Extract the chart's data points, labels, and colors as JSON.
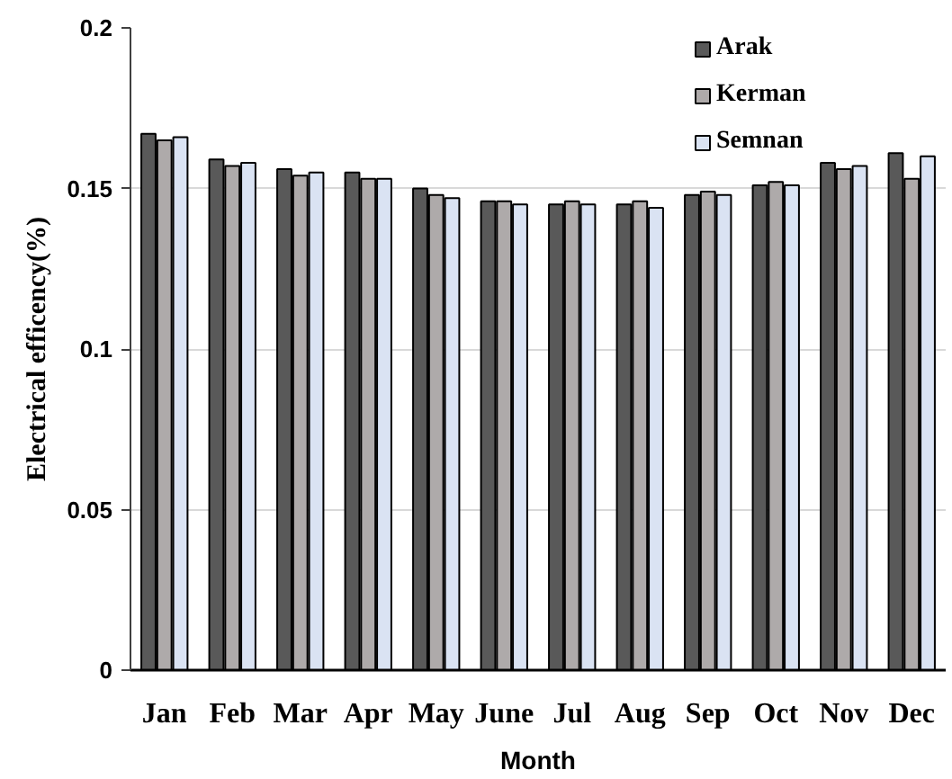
{
  "chart_data": {
    "type": "bar",
    "xlabel": "Month",
    "ylabel": "Electrical efficency(%)",
    "categories": [
      "Jan",
      "Feb",
      "Mar",
      "Apr",
      "May",
      "June",
      "Jul",
      "Aug",
      "Sep",
      "Oct",
      "Nov",
      "Dec"
    ],
    "series": [
      {
        "name": "Arak",
        "color": "#595959",
        "values": [
          0.167,
          0.159,
          0.156,
          0.155,
          0.15,
          0.146,
          0.145,
          0.145,
          0.148,
          0.151,
          0.158,
          0.161
        ]
      },
      {
        "name": "Kerman",
        "color": "#aeaaaa",
        "values": [
          0.165,
          0.157,
          0.154,
          0.153,
          0.148,
          0.146,
          0.146,
          0.146,
          0.149,
          0.152,
          0.156,
          0.153
        ]
      },
      {
        "name": "Semnan",
        "color": "#dae3f3",
        "values": [
          0.166,
          0.158,
          0.155,
          0.153,
          0.147,
          0.145,
          0.145,
          0.144,
          0.148,
          0.151,
          0.157,
          0.16
        ]
      }
    ],
    "ylim": [
      0,
      0.2
    ],
    "yticks": [
      0,
      0.05,
      0.1,
      0.15,
      0.2
    ],
    "grid": "y",
    "legend": "top right"
  }
}
